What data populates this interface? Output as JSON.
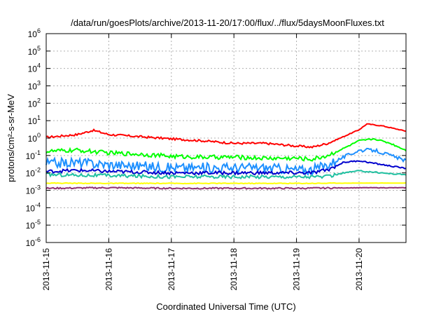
{
  "chart_data": {
    "type": "line",
    "title": "/data/run/goesPlots/archive/2013-11-20/17:00/flux/../flux/5daysMoonFluxes.txt",
    "xlabel": "Coordinated Universal Time (UTC)",
    "ylabel": "protons/cm²-s-sr-MeV",
    "y_scale": "log",
    "ylim": [
      1e-06,
      1000000.0
    ],
    "xlim": [
      "2013-11-15T00:00",
      "2013-11-20T18:00"
    ],
    "grid": true,
    "x_ticks": [
      "2013-11-15",
      "2013-11-16",
      "2013-11-17",
      "2013-11-18",
      "2013-11-19",
      "2013-11-20"
    ],
    "y_ticks": [
      {
        "base": "10",
        "exp": "-6",
        "value": 1e-06
      },
      {
        "base": "10",
        "exp": "-5",
        "value": 1e-05
      },
      {
        "base": "10",
        "exp": "-4",
        "value": 0.0001
      },
      {
        "base": "10",
        "exp": "-3",
        "value": 0.001
      },
      {
        "base": "10",
        "exp": "-2",
        "value": 0.01
      },
      {
        "base": "10",
        "exp": "-1",
        "value": 0.1
      },
      {
        "base": "10",
        "exp": "0",
        "value": 1
      },
      {
        "base": "10",
        "exp": "1",
        "value": 10.0
      },
      {
        "base": "10",
        "exp": "2",
        "value": 100.0
      },
      {
        "base": "10",
        "exp": "3",
        "value": 1000.0
      },
      {
        "base": "10",
        "exp": "4",
        "value": 10000.0
      },
      {
        "base": "10",
        "exp": "5",
        "value": 100000.0
      },
      {
        "base": "10",
        "exp": "6",
        "value": 1000000.0
      }
    ],
    "series": [
      {
        "color": "#ff0000",
        "x": [
          "2013-11-15T00:00",
          "2013-11-15T12:00",
          "2013-11-15T18:00",
          "2013-11-16T00:00",
          "2013-11-16T12:00",
          "2013-11-17T00:00",
          "2013-11-17T12:00",
          "2013-11-18T00:00",
          "2013-11-18T12:00",
          "2013-11-19T00:00",
          "2013-11-19T06:00",
          "2013-11-19T12:00",
          "2013-11-19T18:00",
          "2013-11-20T00:00",
          "2013-11-20T03:00",
          "2013-11-20T09:00",
          "2013-11-20T18:00"
        ],
        "y": [
          1.1,
          1.6,
          2.8,
          1.6,
          1.2,
          0.9,
          0.7,
          0.5,
          0.5,
          0.35,
          0.3,
          0.5,
          1.2,
          3.0,
          6.5,
          5.0,
          2.5
        ]
      },
      {
        "color": "#00ff00",
        "x": [
          "2013-11-15T00:00",
          "2013-11-15T12:00",
          "2013-11-16T00:00",
          "2013-11-16T12:00",
          "2013-11-17T00:00",
          "2013-11-17T12:00",
          "2013-11-18T00:00",
          "2013-11-18T12:00",
          "2013-11-19T00:00",
          "2013-11-19T06:00",
          "2013-11-19T12:00",
          "2013-11-19T18:00",
          "2013-11-20T00:00",
          "2013-11-20T06:00",
          "2013-11-20T12:00",
          "2013-11-20T18:00"
        ],
        "y": [
          0.17,
          0.2,
          0.14,
          0.12,
          0.09,
          0.08,
          0.08,
          0.07,
          0.07,
          0.06,
          0.1,
          0.25,
          0.7,
          0.9,
          0.5,
          0.2
        ]
      },
      {
        "color": "#1e90ff",
        "x": [
          "2013-11-15T00:00",
          "2013-11-15T12:00",
          "2013-11-16T00:00",
          "2013-11-16T12:00",
          "2013-11-17T00:00",
          "2013-11-17T12:00",
          "2013-11-18T00:00",
          "2013-11-18T12:00",
          "2013-11-19T00:00",
          "2013-11-19T06:00",
          "2013-11-19T12:00",
          "2013-11-19T18:00",
          "2013-11-20T00:00",
          "2013-11-20T06:00",
          "2013-11-20T12:00",
          "2013-11-20T18:00"
        ],
        "y": [
          0.035,
          0.04,
          0.03,
          0.025,
          0.02,
          0.02,
          0.02,
          0.02,
          0.015,
          0.015,
          0.03,
          0.08,
          0.2,
          0.2,
          0.1,
          0.05
        ]
      },
      {
        "color": "#0000cd",
        "x": [
          "2013-11-15T00:00",
          "2013-11-15T12:00",
          "2013-11-16T00:00",
          "2013-11-16T12:00",
          "2013-11-17T00:00",
          "2013-11-17T12:00",
          "2013-11-18T00:00",
          "2013-11-18T12:00",
          "2013-11-19T00:00",
          "2013-11-19T06:00",
          "2013-11-19T12:00",
          "2013-11-19T18:00",
          "2013-11-20T00:00",
          "2013-11-20T06:00",
          "2013-11-20T12:00",
          "2013-11-20T18:00"
        ],
        "y": [
          0.012,
          0.014,
          0.012,
          0.011,
          0.01,
          0.01,
          0.01,
          0.01,
          0.01,
          0.01,
          0.015,
          0.04,
          0.05,
          0.035,
          0.025,
          0.018
        ]
      },
      {
        "color": "#20c0a0",
        "x": [
          "2013-11-15T00:00",
          "2013-11-16T00:00",
          "2013-11-17T00:00",
          "2013-11-18T00:00",
          "2013-11-19T00:00",
          "2013-11-19T12:00",
          "2013-11-19T18:00",
          "2013-11-20T00:00",
          "2013-11-20T06:00",
          "2013-11-20T12:00",
          "2013-11-20T18:00"
        ],
        "y": [
          0.008,
          0.007,
          0.006,
          0.006,
          0.006,
          0.006,
          0.01,
          0.013,
          0.011,
          0.009,
          0.008
        ]
      },
      {
        "color": "#ffff00",
        "x": [
          "2013-11-15T00:00",
          "2013-11-16T00:00",
          "2013-11-17T00:00",
          "2013-11-18T00:00",
          "2013-11-19T00:00",
          "2013-11-20T00:00",
          "2013-11-20T18:00"
        ],
        "y": [
          0.0026,
          0.0025,
          0.0025,
          0.0025,
          0.0025,
          0.0026,
          0.0026
        ]
      },
      {
        "color": "#903070",
        "x": [
          "2013-11-15T00:00",
          "2013-11-16T00:00",
          "2013-11-17T00:00",
          "2013-11-18T00:00",
          "2013-11-19T00:00",
          "2013-11-20T00:00",
          "2013-11-20T18:00"
        ],
        "y": [
          0.0013,
          0.0014,
          0.0013,
          0.0013,
          0.0013,
          0.0014,
          0.0014
        ]
      }
    ]
  }
}
